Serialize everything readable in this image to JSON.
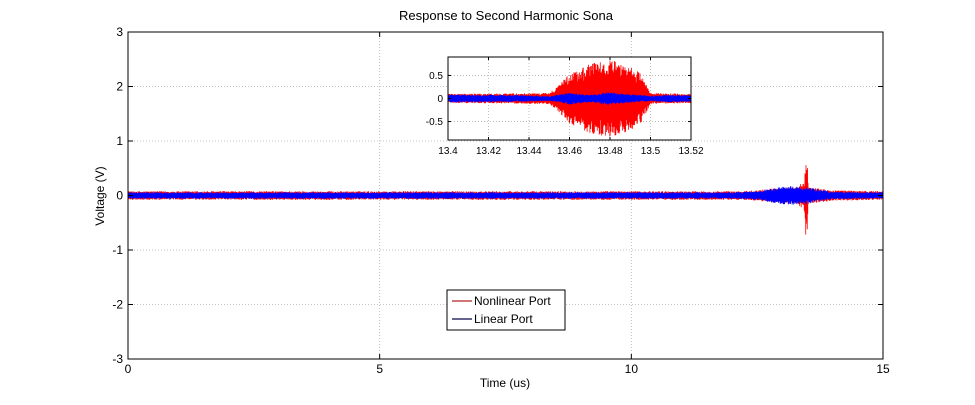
{
  "chart_data": [
    {
      "type": "line",
      "title": "Response to Second Harmonic Sona",
      "xlabel": "Time (us)",
      "ylabel": "Voltage (V)",
      "xlim": [
        0,
        15
      ],
      "ylim": [
        -3,
        3
      ],
      "xticks": [
        0,
        5,
        10,
        15
      ],
      "yticks": [
        -3,
        -2,
        -1,
        0,
        1,
        2,
        3
      ],
      "grid": true,
      "legend_position": "bottom-center",
      "series": [
        {
          "name": "Nonlinear Port",
          "color": "#ff0000",
          "legend_color": "#bf4a4a",
          "envelope": {
            "t": [
              0,
              12.2,
              12.5,
              12.8,
              13.1,
              13.3,
              13.44,
              13.47,
              13.48,
              13.49,
              13.52,
              13.7,
              14.0,
              15
            ],
            "amp": [
              0.08,
              0.08,
              0.1,
              0.13,
              0.15,
              0.15,
              0.3,
              0.82,
              0.85,
              0.8,
              0.15,
              0.13,
              0.1,
              0.08
            ]
          }
        },
        {
          "name": "Linear Port",
          "color": "#0000ff",
          "legend_color": "#30306a",
          "envelope": {
            "t": [
              0,
              12.0,
              12.5,
              12.8,
              13.0,
              13.2,
              13.4,
              13.48,
              13.6,
              13.8,
              14.0,
              15
            ],
            "amp": [
              0.06,
              0.06,
              0.08,
              0.13,
              0.16,
              0.17,
              0.15,
              0.16,
              0.13,
              0.1,
              0.07,
              0.06
            ]
          }
        }
      ]
    },
    {
      "type": "line",
      "title": "",
      "xlim": [
        13.4,
        13.52
      ],
      "ylim": [
        -0.9,
        0.9
      ],
      "xticks": [
        13.4,
        13.42,
        13.44,
        13.46,
        13.48,
        13.5,
        13.52
      ],
      "yticks": [
        -0.5,
        0,
        0.5
      ],
      "grid": true,
      "series": [
        {
          "name": "Nonlinear Port",
          "color": "#ff0000",
          "envelope": {
            "t": [
              13.4,
              13.45,
              13.455,
              13.46,
              13.47,
              13.478,
              13.485,
              13.49,
              13.495,
              13.5,
              13.52
            ],
            "amp": [
              0.1,
              0.12,
              0.3,
              0.55,
              0.76,
              0.83,
              0.8,
              0.7,
              0.55,
              0.12,
              0.1
            ]
          }
        },
        {
          "name": "Linear Port",
          "color": "#0000ff",
          "envelope": {
            "t": [
              13.4,
              13.44,
              13.45,
              13.46,
              13.47,
              13.48,
              13.49,
              13.5,
              13.51,
              13.52
            ],
            "amp": [
              0.09,
              0.07,
              0.05,
              0.13,
              0.08,
              0.14,
              0.09,
              0.06,
              0.08,
              0.08
            ]
          }
        }
      ]
    }
  ]
}
